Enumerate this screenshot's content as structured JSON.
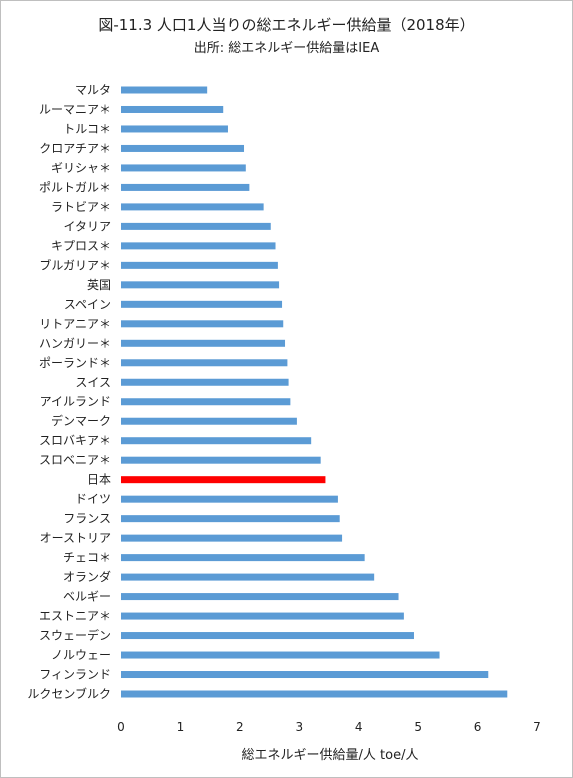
{
  "chart_data": {
    "type": "bar",
    "orientation": "horizontal",
    "title": "図-11.3  人口1人当りの総エネルギー供給量（2018年）",
    "subtitle": "出所: 総エネルギー供給量はIEA",
    "xlabel": "総エネルギー供給量/人  toe/人",
    "ylabel": "",
    "xlim": [
      0,
      7
    ],
    "xticks": [
      "0",
      "1",
      "2",
      "3",
      "4",
      "5",
      "6",
      "7"
    ],
    "grid": false,
    "bar_color": "#5b9bd5",
    "highlight_color": "#ff0000",
    "highlight_category": "日本",
    "categories": [
      "マルタ",
      "ルーマニア＊",
      "トルコ＊",
      "クロアチア＊",
      "ギリシャ＊",
      "ポルトガル＊",
      "ラトビア＊",
      "イタリア",
      "キプロス＊",
      "ブルガリア＊",
      "英国",
      "スペイン",
      "リトアニア＊",
      "ハンガリー＊",
      "ポーランド＊",
      "スイス",
      "アイルランド",
      "デンマーク",
      "スロバキア＊",
      "スロベニア＊",
      "日本",
      "ドイツ",
      "フランス",
      "オーストリア",
      "チェコ＊",
      "オランダ",
      "ベルギー",
      "エストニア＊",
      "スウェーデン",
      "ノルウェー",
      "フィンランド",
      "ルクセンブルク"
    ],
    "values": [
      1.45,
      1.72,
      1.8,
      2.07,
      2.1,
      2.16,
      2.4,
      2.52,
      2.6,
      2.64,
      2.66,
      2.71,
      2.73,
      2.76,
      2.8,
      2.82,
      2.85,
      2.96,
      3.2,
      3.36,
      3.44,
      3.65,
      3.68,
      3.72,
      4.1,
      4.26,
      4.67,
      4.76,
      4.93,
      5.36,
      6.18,
      6.5
    ]
  }
}
